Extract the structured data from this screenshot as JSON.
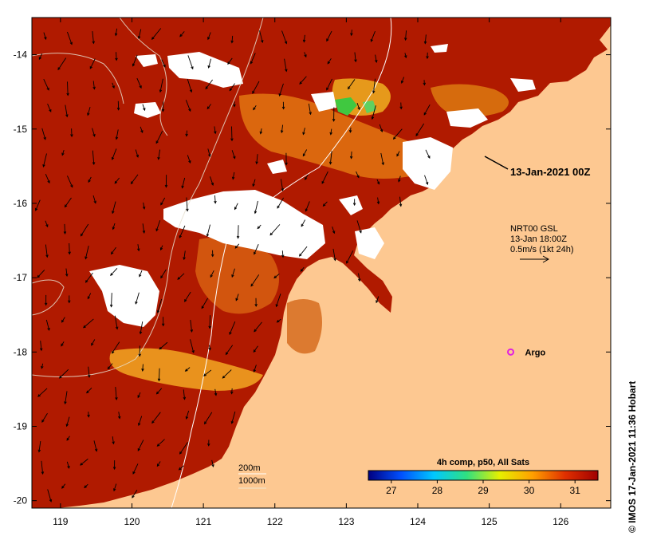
{
  "chart_data": {
    "type": "heatmap",
    "title": "13-Jan-2021 00Z",
    "xlim": [
      118.6,
      126.7
    ],
    "ylim": [
      -20.1,
      -13.5
    ],
    "x_ticks": [
      "119",
      "120",
      "121",
      "122",
      "123",
      "124",
      "125",
      "126"
    ],
    "y_ticks": [
      "-14",
      "-15",
      "-16",
      "-17",
      "-18",
      "-19",
      "-20"
    ],
    "colorbar": {
      "title": "4h comp, p50, All Sats",
      "min": 26.5,
      "max": 31.5,
      "ticks": [
        "27",
        "28",
        "29",
        "30",
        "31"
      ],
      "stops": [
        "#000080",
        "#0050ff",
        "#00c8ff",
        "#30e080",
        "#e6f000",
        "#ffa000",
        "#e03000",
        "#a00000"
      ]
    },
    "current_legend": {
      "line1": "NRT00 GSL",
      "line2": "13-Jan 18:00Z",
      "line3": "0.5m/s (1kt 24h)"
    },
    "bathymetry_legend": {
      "contour1": "200m",
      "contour2": "1000m"
    },
    "argo": {
      "label": "Argo",
      "lon": 125.3,
      "lat": -18.0,
      "color": "#e020e0"
    },
    "credit": "IMOS 17-Jan-2021 11:36 Hobart",
    "colors": {
      "land": "#fdc891",
      "sea_warm": "#b01a00",
      "cloud": "#ffffff",
      "frame": "#000000"
    }
  }
}
